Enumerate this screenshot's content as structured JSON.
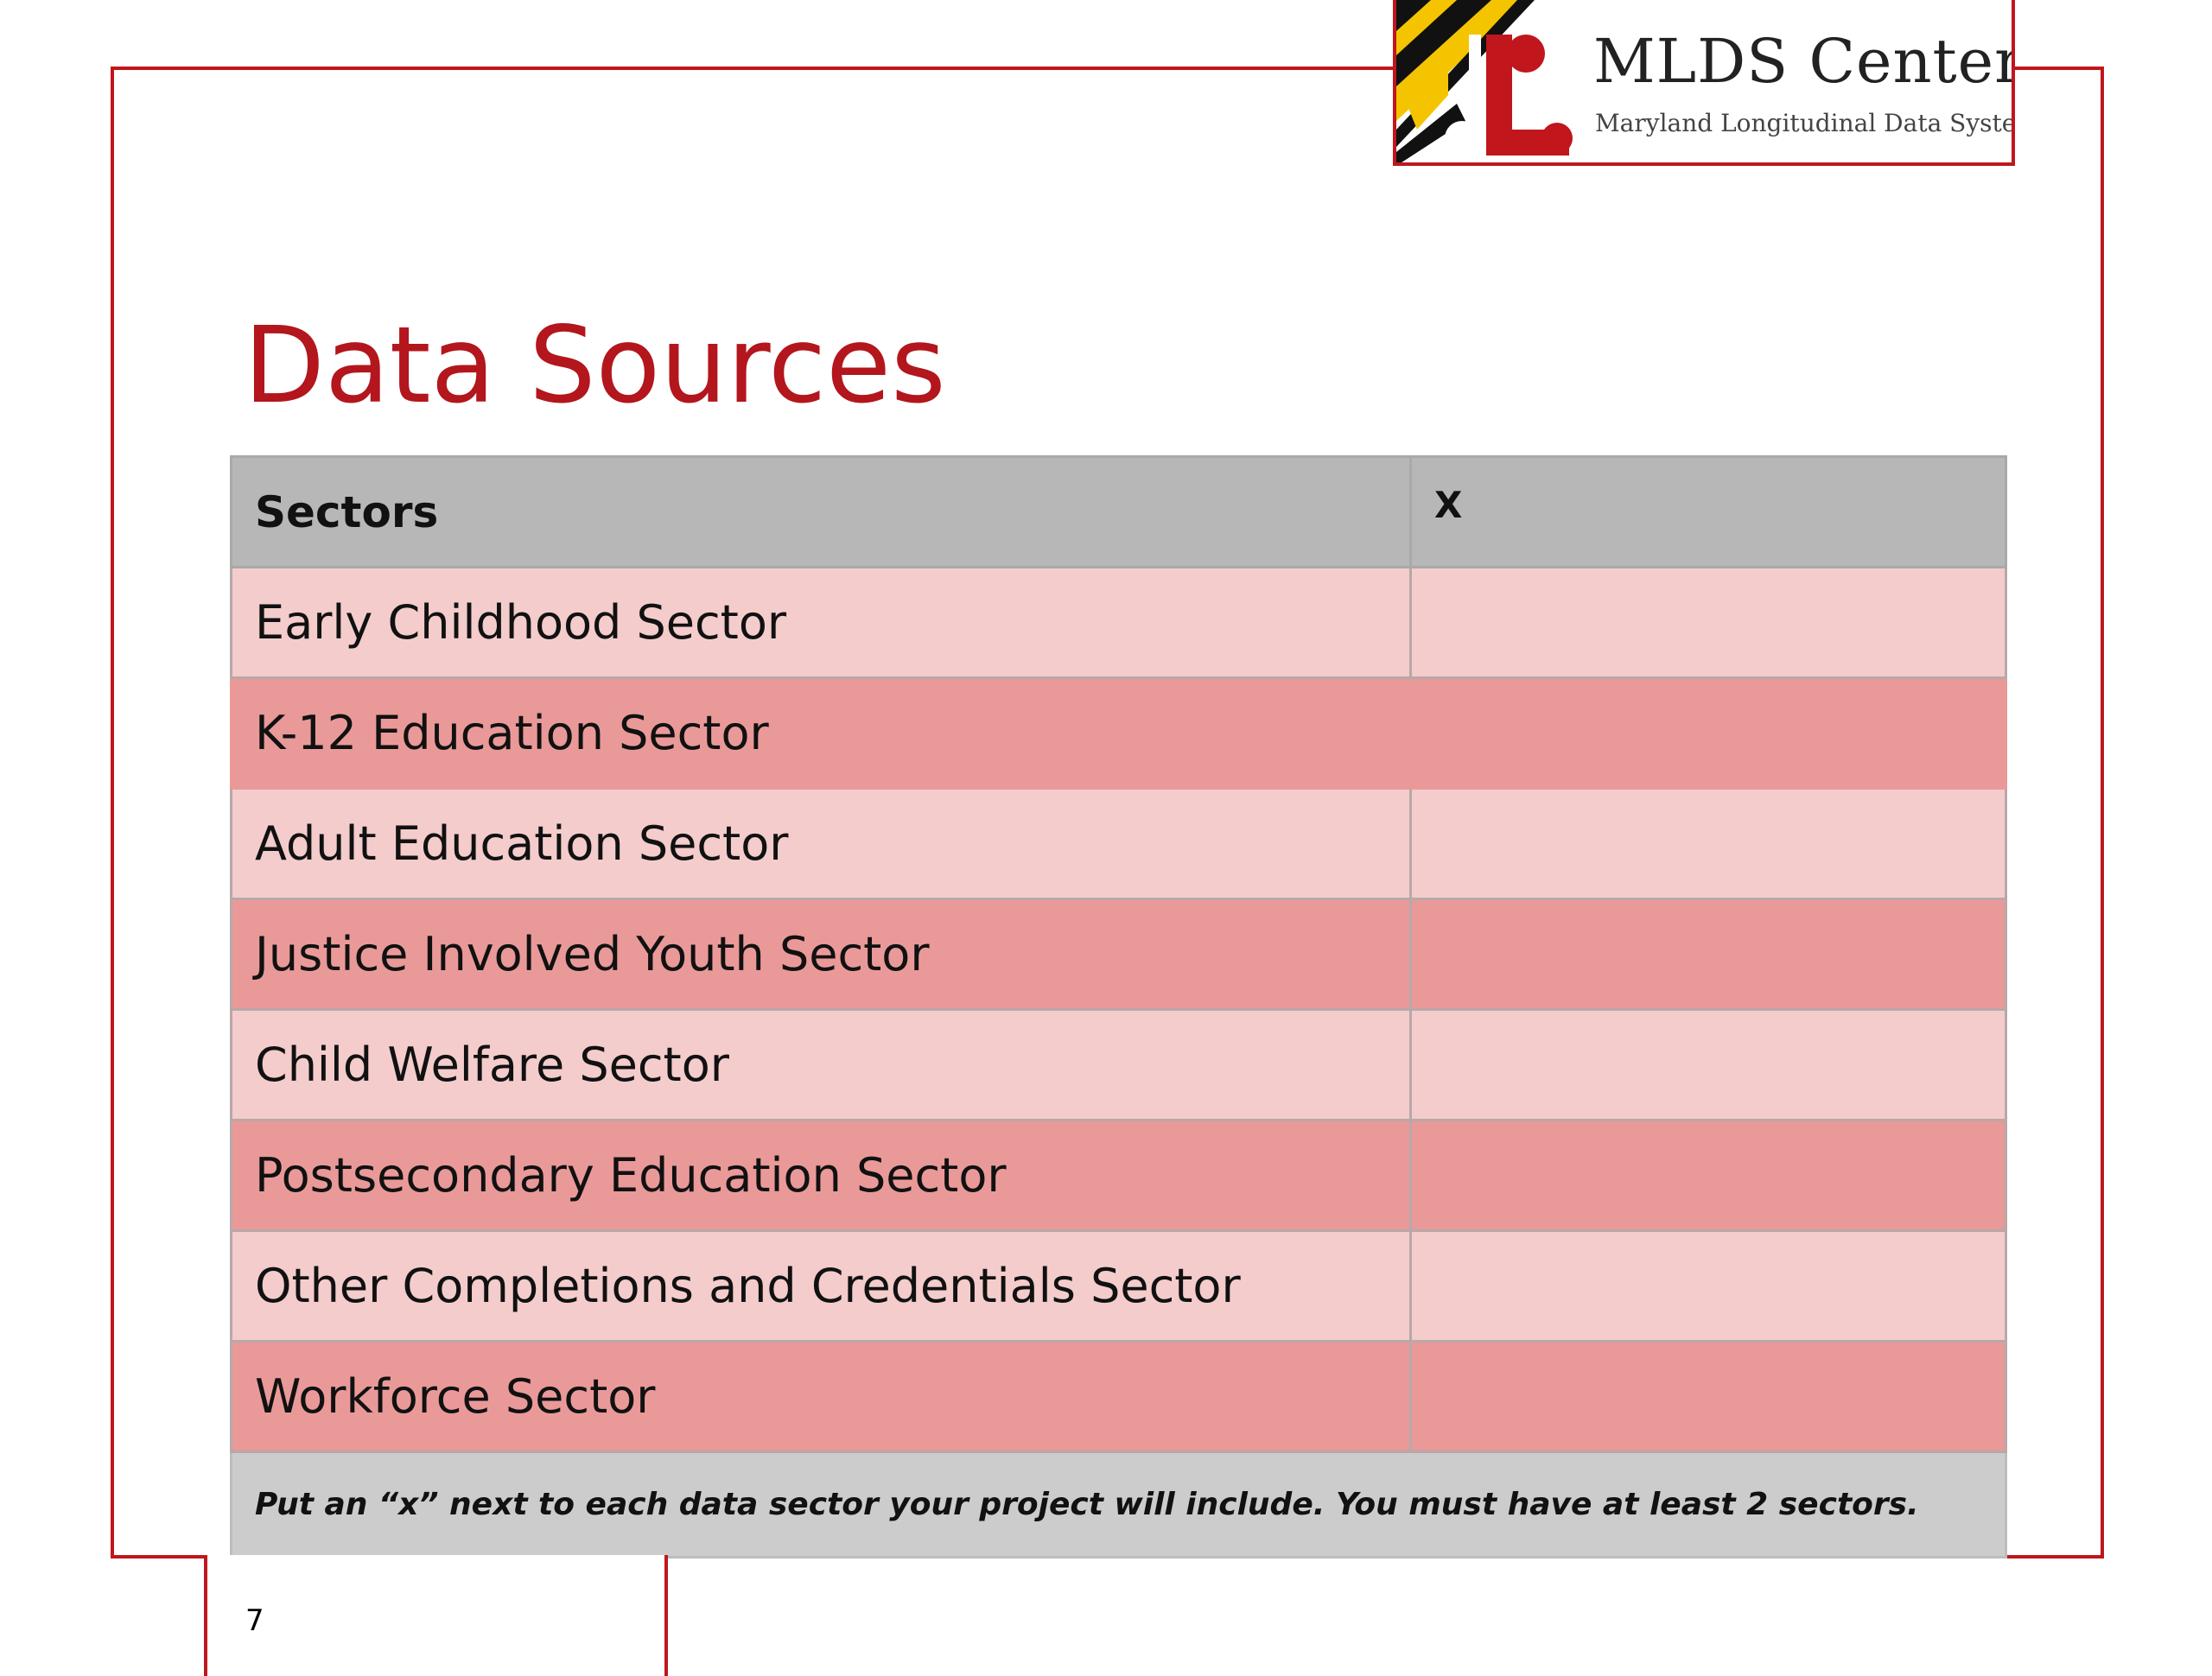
{
  "logo": {
    "title": "MLDS Center",
    "subtitle": "Maryland Longitudinal Data System"
  },
  "page": {
    "title": "Data Sources",
    "number": "7"
  },
  "table": {
    "headers": [
      "Sectors",
      "X"
    ],
    "rows": [
      {
        "sector": "Early Childhood Sector",
        "mark": ""
      },
      {
        "sector": "K-12 Education Sector",
        "mark": ""
      },
      {
        "sector": "Adult Education Sector",
        "mark": ""
      },
      {
        "sector": "Justice Involved Youth Sector",
        "mark": ""
      },
      {
        "sector": "Child Welfare Sector",
        "mark": ""
      },
      {
        "sector": "Postsecondary Education Sector",
        "mark": ""
      },
      {
        "sector": "Other Completions and Credentials Sector",
        "mark": ""
      },
      {
        "sector": "Workforce Sector",
        "mark": ""
      }
    ],
    "footnote": "Put an “x” next to each data sector your project will include. You must have at least 2 sectors."
  },
  "colors": {
    "brand_red": "#b3161c",
    "header_gray": "#b7b7b7",
    "row_light": "#f4cccc",
    "row_dark": "#ea9999",
    "footer_gray": "#cccccc"
  }
}
